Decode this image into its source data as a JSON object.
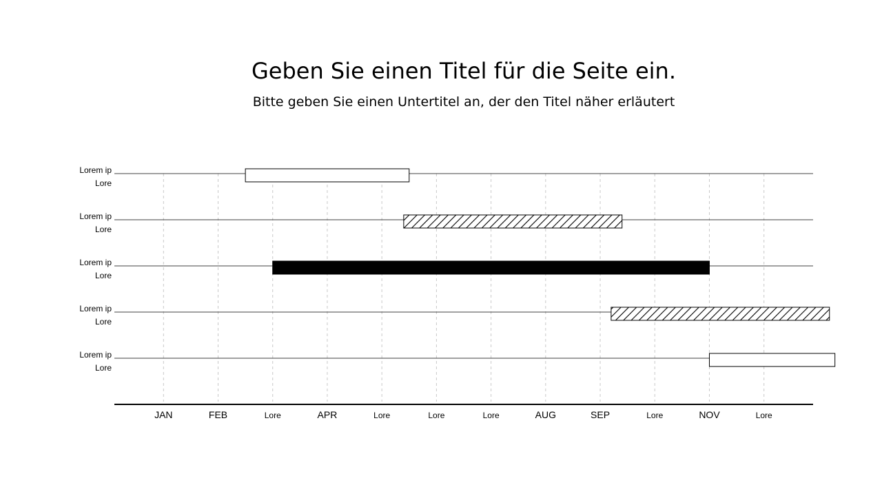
{
  "header": {
    "title": "Geben Sie einen Titel für die Seite ein.",
    "subtitle": "Bitte geben Sie einen Untertitel an, der den Titel näher erläutert"
  },
  "chart_data": {
    "type": "gantt",
    "title": "Geben Sie einen Titel für die Seite ein.",
    "subtitle": "Bitte geben Sie einen Untertitel an, der den Titel näher erläutert",
    "months": [
      "JAN",
      "FEB",
      "Lore",
      "APR",
      "Lore",
      "Lore",
      "Lore",
      "AUG",
      "SEP",
      "Lore",
      "NOV",
      "Lore"
    ],
    "x_range": [
      0.1,
      12.9
    ],
    "grid": "vertical dashed",
    "tasks": [
      {
        "label_line1": "Lorem ip",
        "label_line2": "Lore",
        "start": 2.5,
        "end": 5.5,
        "fill": "white"
      },
      {
        "label_line1": "Lorem ip",
        "label_line2": "Lore",
        "start": 5.4,
        "end": 9.4,
        "fill": "hatched"
      },
      {
        "label_line1": "Lorem ip",
        "label_line2": "Lore",
        "start": 3.0,
        "end": 11.0,
        "fill": "black"
      },
      {
        "label_line1": "Lorem ip",
        "label_line2": "Lore",
        "start": 9.2,
        "end": 13.2,
        "fill": "hatched"
      },
      {
        "label_line1": "Lorem ip",
        "label_line2": "Lore",
        "start": 11.0,
        "end": 13.3,
        "fill": "white"
      }
    ],
    "colors": {
      "bar_black": "#000000",
      "grid": "#c8c8c8",
      "axis": "#000000"
    }
  }
}
